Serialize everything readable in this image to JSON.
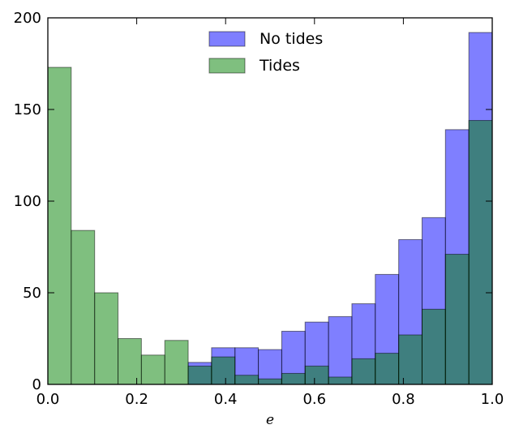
{
  "chart_data": {
    "type": "bar",
    "subtype": "overlaid-histogram",
    "title": "",
    "xlabel": "e",
    "ylabel": "",
    "xlim": [
      0.0,
      1.0
    ],
    "ylim": [
      0,
      200
    ],
    "xticks": [
      "0.0",
      "0.2",
      "0.4",
      "0.6",
      "0.8",
      "1.0"
    ],
    "yticks": [
      "0",
      "50",
      "100",
      "150",
      "200"
    ],
    "grid": false,
    "legend_placement": "top-center",
    "bin_edges": [
      0.0,
      0.0526,
      0.1053,
      0.1579,
      0.2105,
      0.2632,
      0.3158,
      0.3684,
      0.4211,
      0.4737,
      0.5263,
      0.5789,
      0.6316,
      0.6842,
      0.7368,
      0.7895,
      0.8421,
      0.8947,
      0.9474,
      1.0
    ],
    "series": [
      {
        "name": "No tides",
        "color": "#0000ff",
        "opacity": 0.5,
        "values": [
          0,
          0,
          0,
          0,
          0,
          0,
          12,
          20,
          20,
          19,
          29,
          34,
          37,
          44,
          60,
          79,
          91,
          139,
          192
        ]
      },
      {
        "name": "Tides",
        "color": "#008000",
        "opacity": 0.5,
        "values": [
          173,
          84,
          50,
          25,
          16,
          24,
          10,
          15,
          5,
          3,
          6,
          10,
          4,
          14,
          17,
          27,
          41,
          71,
          144
        ]
      }
    ]
  }
}
